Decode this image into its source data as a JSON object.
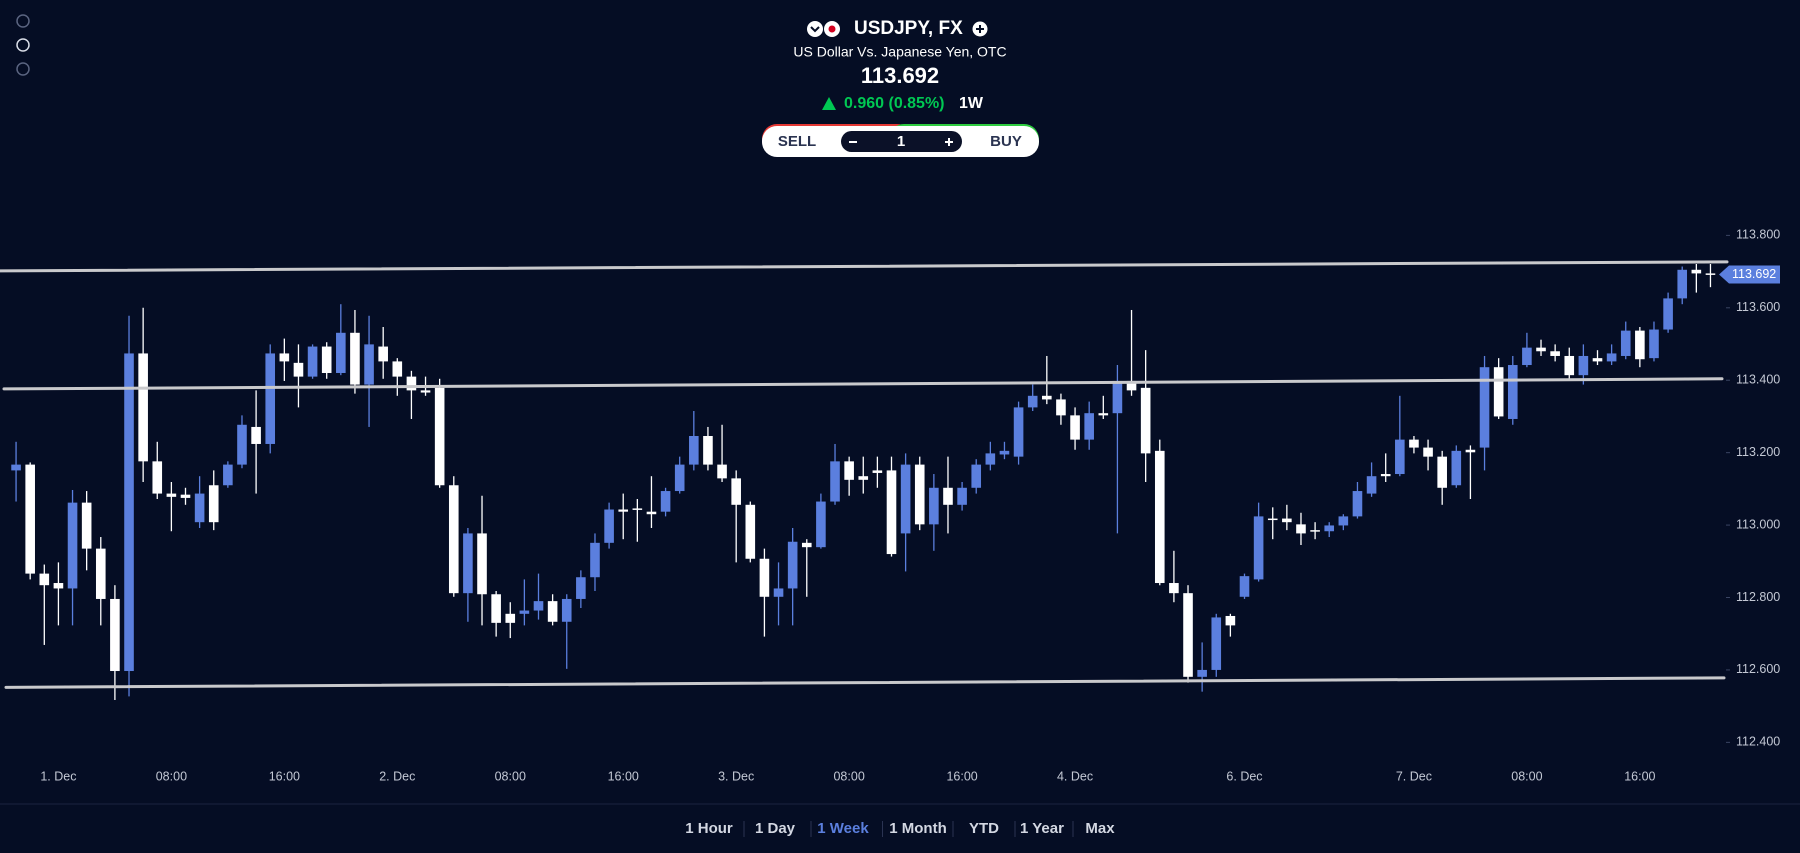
{
  "header": {
    "symbol": "USDJPY, FX",
    "description": "US Dollar Vs. Japanese Yen, OTC",
    "change": "0.960 (0.85%)",
    "period": "1W"
  },
  "trade": {
    "sell": "SELL",
    "buy": "BUY",
    "quantity": 1
  },
  "range_selector": {
    "options": [
      "1 Hour",
      "1 Day",
      "1 Week",
      "1 Month",
      "YTD",
      "1 Year",
      "Max"
    ],
    "selected": 2
  },
  "chart_data": {
    "type": "candlestick",
    "categories": [
      null,
      null,
      null,
      "1. Dec",
      null,
      null,
      null,
      null,
      null,
      null,
      null,
      "08:00",
      null,
      null,
      null,
      null,
      null,
      null,
      null,
      "16:00",
      null,
      null,
      null,
      null,
      null,
      null,
      null,
      "2. Dec",
      null,
      null,
      null,
      null,
      null,
      null,
      null,
      "08:00",
      null,
      null,
      null,
      null,
      null,
      null,
      null,
      "16:00",
      null,
      null,
      null,
      null,
      null,
      null,
      null,
      "3. Dec",
      null,
      null,
      null,
      null,
      null,
      null,
      null,
      "08:00",
      null,
      null,
      null,
      null,
      null,
      null,
      null,
      "16:00",
      null,
      null,
      null,
      null,
      null,
      null,
      null,
      "4. Dec",
      null,
      null,
      null,
      null,
      null,
      null,
      null,
      null,
      null,
      null,
      null,
      "6. Dec",
      null,
      null,
      null,
      null,
      null,
      null,
      null,
      null,
      null,
      null,
      null,
      "7. Dec",
      null,
      null,
      null,
      null,
      null,
      null,
      null,
      "08:00",
      null,
      null,
      null,
      null,
      null,
      null,
      null,
      "16:00",
      null,
      null,
      null,
      null,
      null
    ],
    "open": [
      113.151,
      113.167,
      112.866,
      112.84,
      112.825,
      113.062,
      112.935,
      112.796,
      112.597,
      113.474,
      113.176,
      113.087,
      113.084,
      113.008,
      113.11,
      113.11,
      113.167,
      113.271,
      113.224,
      113.474,
      113.448,
      113.41,
      113.493,
      113.42,
      113.531,
      113.388,
      113.493,
      113.452,
      113.41,
      113.372,
      113.379,
      113.11,
      112.812,
      112.977,
      112.809,
      112.755,
      112.755,
      112.764,
      112.79,
      112.733,
      112.796,
      112.856,
      112.951,
      113.043,
      113.046,
      113.037,
      113.037,
      113.094,
      113.167,
      113.246,
      113.167,
      113.129,
      113.056,
      112.907,
      112.802,
      112.825,
      112.951,
      112.939,
      113.065,
      113.176,
      113.135,
      113.151,
      113.151,
      112.977,
      113.167,
      113.002,
      113.103,
      113.056,
      113.103,
      113.167,
      113.195,
      113.189,
      113.325,
      113.357,
      113.347,
      113.303,
      113.236,
      113.309,
      113.309,
      113.398,
      113.379,
      113.205,
      112.84,
      112.812,
      112.581,
      112.6,
      112.749,
      112.802,
      112.85,
      113.018,
      113.018,
      113.002,
      112.986,
      112.983,
      112.999,
      113.024,
      113.087,
      113.141,
      113.141,
      113.236,
      113.214,
      113.189,
      113.11,
      113.208,
      113.214,
      113.436,
      113.293,
      113.442,
      113.49,
      113.48,
      113.467,
      113.414,
      113.461,
      113.452,
      113.467,
      113.537,
      113.461,
      113.54,
      113.626,
      113.705,
      113.695
    ],
    "high": [
      113.23,
      113.173,
      112.891,
      112.897,
      113.097,
      113.094,
      112.967,
      112.834,
      113.578,
      113.6,
      113.23,
      113.119,
      113.103,
      113.135,
      113.151,
      113.176,
      113.303,
      113.372,
      113.499,
      113.515,
      113.499,
      113.499,
      113.505,
      113.61,
      113.594,
      113.578,
      113.547,
      113.461,
      113.426,
      113.41,
      113.404,
      113.135,
      112.992,
      113.081,
      112.818,
      112.787,
      112.85,
      112.866,
      112.809,
      112.809,
      112.875,
      112.977,
      113.062,
      113.087,
      113.072,
      113.135,
      113.103,
      113.189,
      113.315,
      113.271,
      113.277,
      113.151,
      113.065,
      112.935,
      112.897,
      112.992,
      112.961,
      113.087,
      113.224,
      113.189,
      113.189,
      113.189,
      113.189,
      113.198,
      113.189,
      113.141,
      113.189,
      113.119,
      113.182,
      113.23,
      113.23,
      113.341,
      113.388,
      113.467,
      113.363,
      113.325,
      113.341,
      113.357,
      113.442,
      113.594,
      113.483,
      113.236,
      112.929,
      112.834,
      112.676,
      112.755,
      112.755,
      112.866,
      113.062,
      113.049,
      113.056,
      113.034,
      113.008,
      113.008,
      113.03,
      113.119,
      113.173,
      113.198,
      113.357,
      113.246,
      113.236,
      113.205,
      113.22,
      113.22,
      113.467,
      113.461,
      113.467,
      113.531,
      113.512,
      113.499,
      113.49,
      113.499,
      113.483,
      113.499,
      113.562,
      113.547,
      113.562,
      113.642,
      113.714,
      113.721,
      113.721
    ],
    "low": [
      113.065,
      112.85,
      112.669,
      112.723,
      112.723,
      112.875,
      112.723,
      112.517,
      112.527,
      113.119,
      113.072,
      112.983,
      113.056,
      112.992,
      112.986,
      113.103,
      113.157,
      113.087,
      113.198,
      113.398,
      113.325,
      113.404,
      113.404,
      113.414,
      113.363,
      113.271,
      113.404,
      113.357,
      113.293,
      113.357,
      113.103,
      112.802,
      112.733,
      112.723,
      112.692,
      112.688,
      112.723,
      112.739,
      112.723,
      112.603,
      112.771,
      112.818,
      112.935,
      112.961,
      112.954,
      112.992,
      113.024,
      113.087,
      113.151,
      113.151,
      113.119,
      112.897,
      112.897,
      112.692,
      112.723,
      112.723,
      112.802,
      112.935,
      113.056,
      113.081,
      113.087,
      113.103,
      112.913,
      112.872,
      112.986,
      112.929,
      112.977,
      113.04,
      113.087,
      113.151,
      113.182,
      113.167,
      113.315,
      113.334,
      113.277,
      113.208,
      113.208,
      113.293,
      112.977,
      113.357,
      113.119,
      112.834,
      112.787,
      112.565,
      112.54,
      112.581,
      112.692,
      112.796,
      112.844,
      112.961,
      112.986,
      112.945,
      112.961,
      112.967,
      112.986,
      113.018,
      113.078,
      113.119,
      113.135,
      113.198,
      113.151,
      113.056,
      113.103,
      113.072,
      113.151,
      113.293,
      113.277,
      113.436,
      113.467,
      113.452,
      113.404,
      113.388,
      113.442,
      113.442,
      113.458,
      113.436,
      113.452,
      113.531,
      113.61,
      113.642,
      113.657
    ],
    "close": [
      113.167,
      112.866,
      112.834,
      112.825,
      113.062,
      112.935,
      112.796,
      112.597,
      113.474,
      113.176,
      113.087,
      113.078,
      113.075,
      113.087,
      113.008,
      113.167,
      113.277,
      113.224,
      113.474,
      113.452,
      113.41,
      113.493,
      113.42,
      113.531,
      113.388,
      113.499,
      113.452,
      113.41,
      113.372,
      113.366,
      113.11,
      112.812,
      112.977,
      112.809,
      112.73,
      112.73,
      112.764,
      112.79,
      112.733,
      112.796,
      112.856,
      112.951,
      113.043,
      113.037,
      113.043,
      113.03,
      113.094,
      113.167,
      113.246,
      113.167,
      113.129,
      113.056,
      112.907,
      112.802,
      112.825,
      112.954,
      112.939,
      113.065,
      113.176,
      113.125,
      113.125,
      113.144,
      112.92,
      113.167,
      113.002,
      113.103,
      113.056,
      113.103,
      113.167,
      113.198,
      113.205,
      113.325,
      113.357,
      113.347,
      113.303,
      113.236,
      113.309,
      113.303,
      113.398,
      113.372,
      113.198,
      112.84,
      112.812,
      112.581,
      112.6,
      112.745,
      112.723,
      112.859,
      113.024,
      113.015,
      113.008,
      112.977,
      112.983,
      112.999,
      113.024,
      113.094,
      113.135,
      113.135,
      113.236,
      113.214,
      113.189,
      113.103,
      113.205,
      113.201,
      113.436,
      113.3,
      113.442,
      113.49,
      113.48,
      113.467,
      113.414,
      113.467,
      113.452,
      113.474,
      113.537,
      113.458,
      113.54,
      113.626,
      113.705,
      113.695,
      113.692
    ],
    "up_color": "#5b7fde",
    "down_color": "#ffffff",
    "current_price": 113.692,
    "trendlines": [
      {
        "start": 113.702,
        "end": 113.727
      },
      {
        "start": 113.376,
        "end": 113.404
      },
      {
        "start": 112.552,
        "end": 112.578
      }
    ],
    "ylim": [
      112.343,
      113.848
    ],
    "yticks": [
      {
        "value": 112.4,
        "label": "112.400"
      },
      {
        "value": 112.6,
        "label": "112.600"
      },
      {
        "value": 112.8,
        "label": "112.800"
      },
      {
        "value": 113.0,
        "label": "113.000"
      },
      {
        "value": 113.2,
        "label": "113.200"
      },
      {
        "value": 113.4,
        "label": "113.400"
      },
      {
        "value": 113.6,
        "label": "113.600"
      },
      {
        "value": 113.8,
        "label": "113.800"
      }
    ]
  }
}
